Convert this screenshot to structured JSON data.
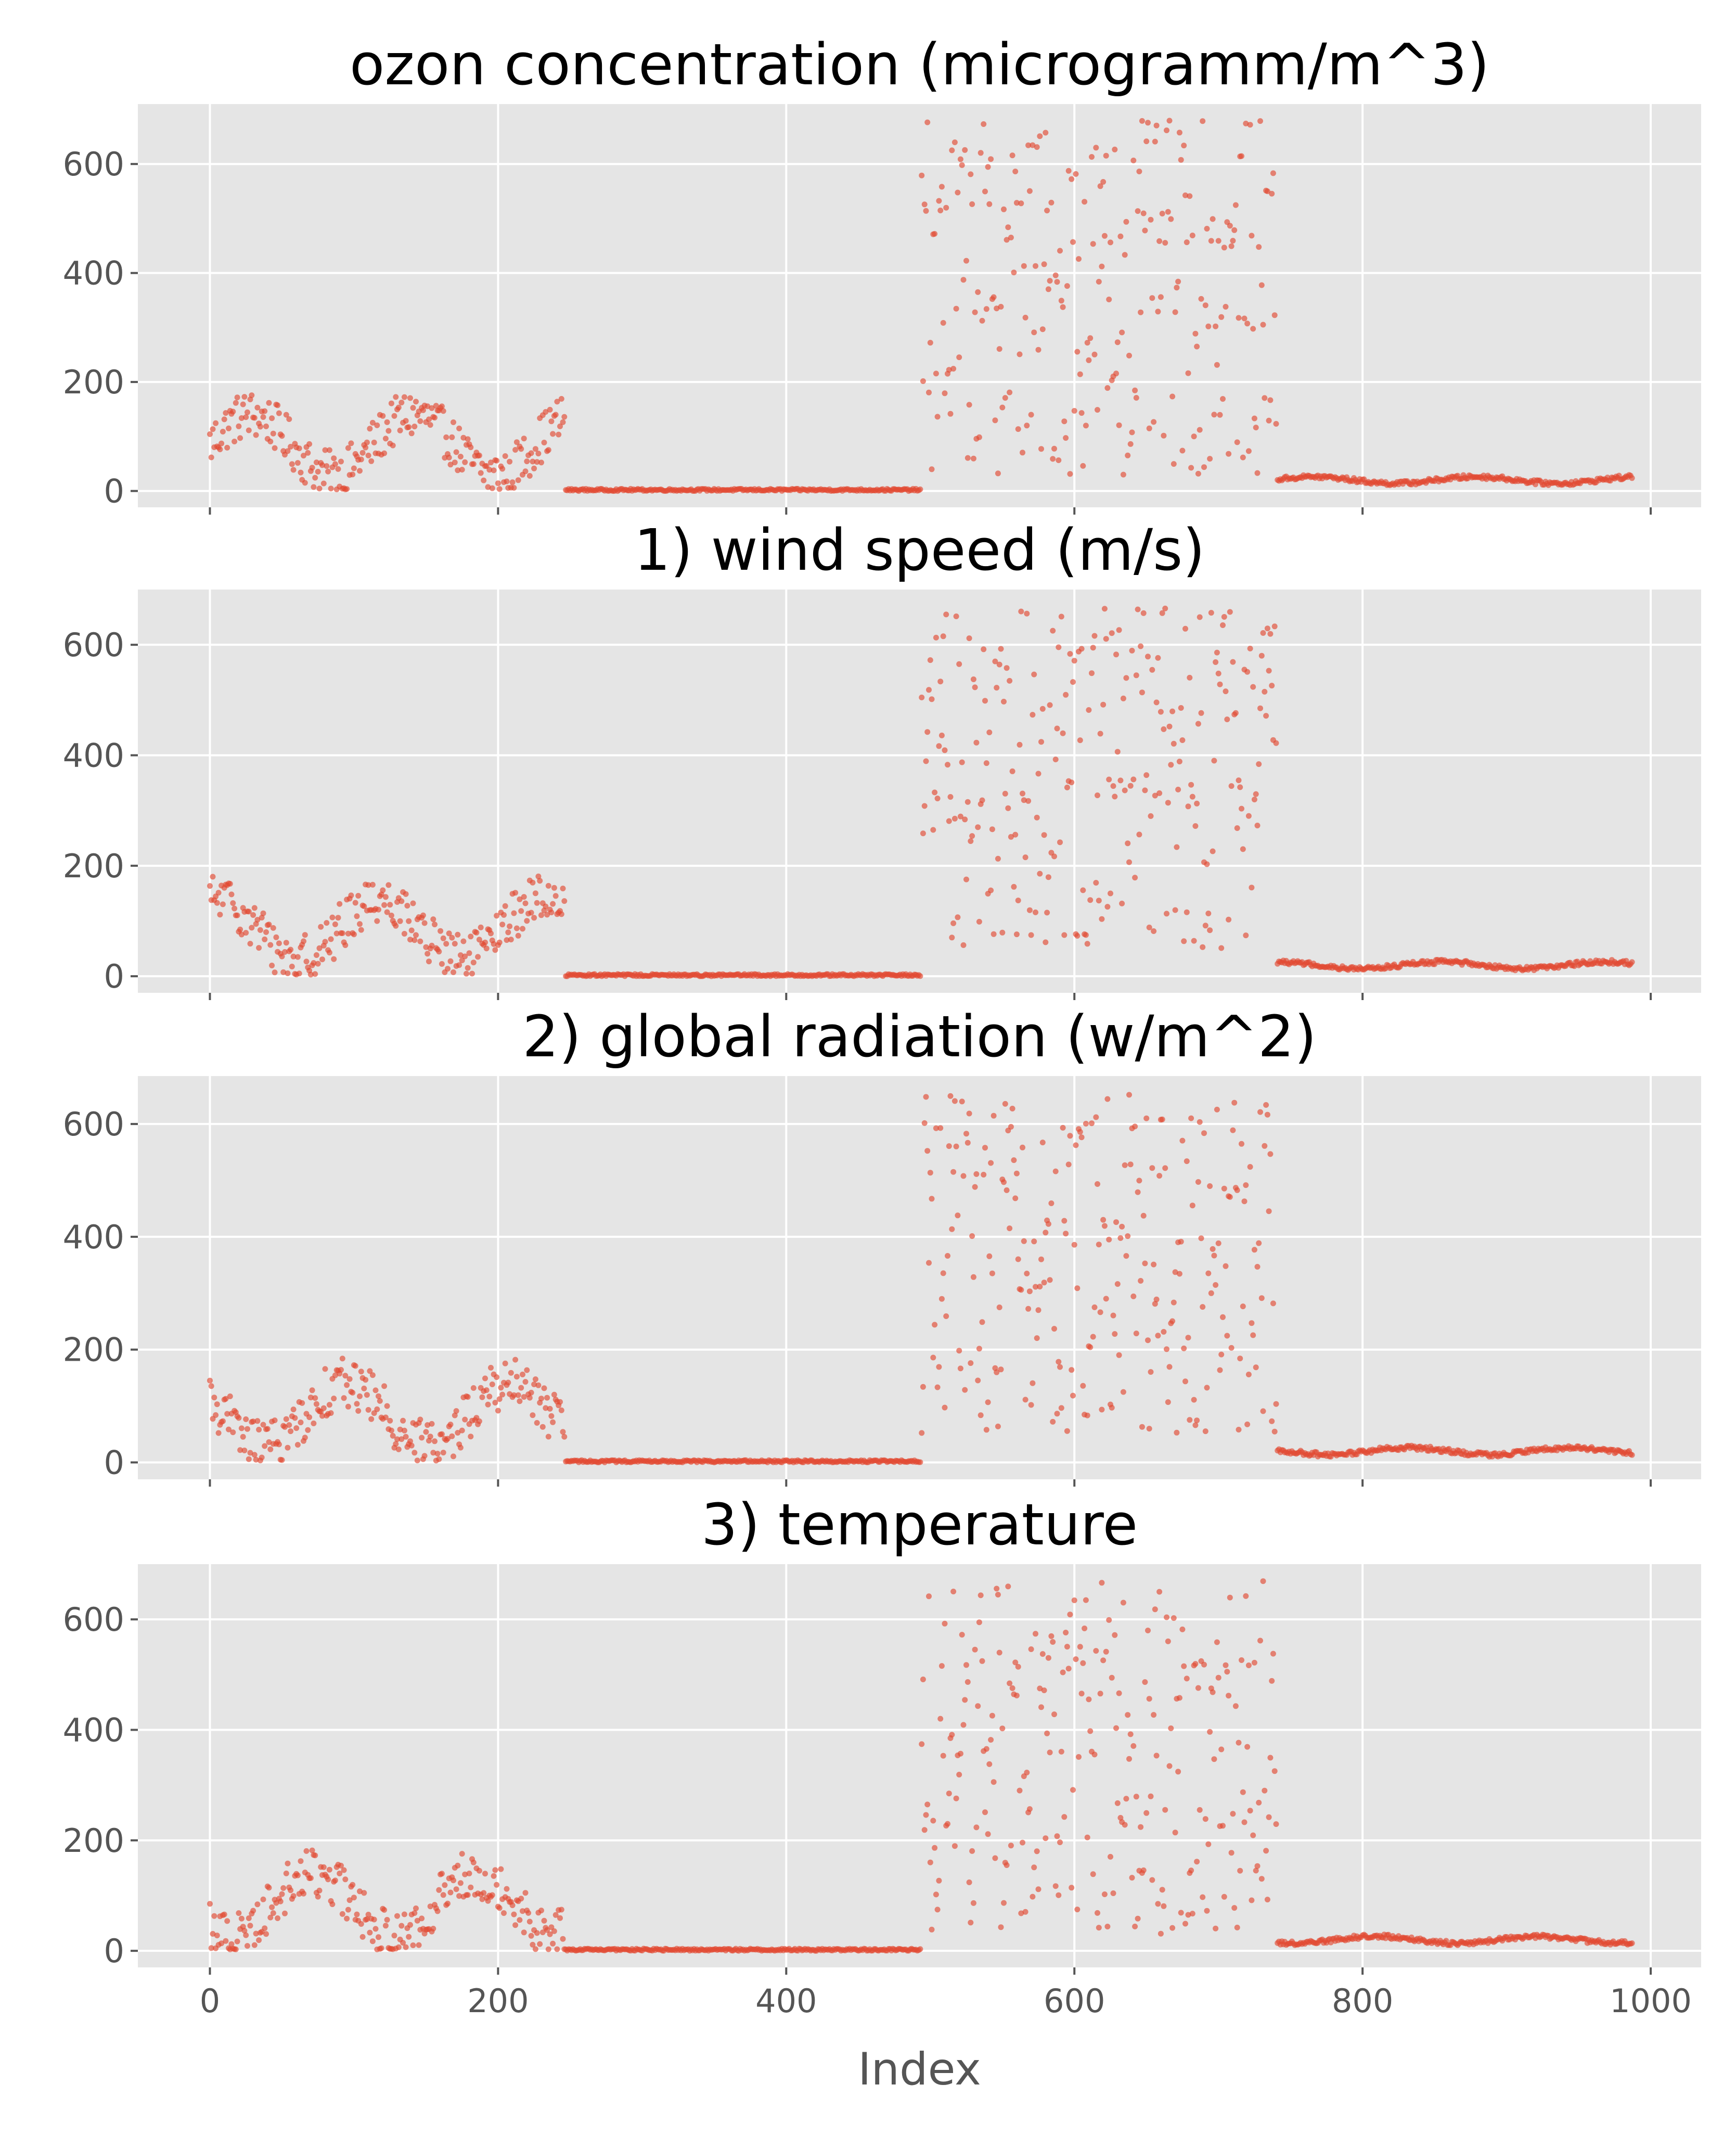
{
  "style": {
    "panel_background": "#e5e5e5",
    "grid_color": "#ffffff",
    "point_color": "#e24a33",
    "text_color": "#555555",
    "title_color": "#000000"
  },
  "chart_data": [
    {
      "type": "scatter",
      "title": "ozon concentration (microgramm/m^3)",
      "xlim": [
        -50,
        1035
      ],
      "ylim": [
        -30,
        710
      ],
      "xticks": [
        0,
        200,
        400,
        600,
        800,
        1000
      ],
      "yticks": [
        0,
        200,
        400,
        600
      ],
      "show_xticklabels": false,
      "xlabel": "",
      "grid": true,
      "segments": [
        {
          "x_range": [
            0,
            247
          ],
          "y_range": [
            2,
            210
          ],
          "mode": "wave",
          "mean": 85,
          "amp": 55,
          "noise": 45
        },
        {
          "x_range": [
            247,
            494
          ],
          "y_range": [
            0,
            6
          ],
          "mode": "flat",
          "mean": 2,
          "amp": 0,
          "noise": 2
        },
        {
          "x_range": [
            494,
            741
          ],
          "y_range": [
            30,
            680
          ],
          "mode": "uniform",
          "mean": 0,
          "amp": 0,
          "noise": 0
        },
        {
          "x_range": [
            741,
            988
          ],
          "y_range": [
            8,
            38
          ],
          "mode": "wave",
          "mean": 20,
          "amp": 6,
          "noise": 4
        }
      ]
    },
    {
      "type": "scatter",
      "title": "1) wind speed (m/s)",
      "xlim": [
        -50,
        1035
      ],
      "ylim": [
        -30,
        700
      ],
      "xticks": [
        0,
        200,
        400,
        600,
        800,
        1000
      ],
      "yticks": [
        0,
        200,
        400,
        600
      ],
      "show_xticklabels": false,
      "xlabel": "",
      "grid": true,
      "segments": [
        {
          "x_range": [
            0,
            247
          ],
          "y_range": [
            2,
            240
          ],
          "mode": "wave",
          "mean": 85,
          "amp": 55,
          "noise": 45
        },
        {
          "x_range": [
            247,
            494
          ],
          "y_range": [
            0,
            6
          ],
          "mode": "flat",
          "mean": 2,
          "amp": 0,
          "noise": 2
        },
        {
          "x_range": [
            494,
            741
          ],
          "y_range": [
            50,
            670
          ],
          "mode": "uniform",
          "mean": 0,
          "amp": 0,
          "noise": 0
        },
        {
          "x_range": [
            741,
            988
          ],
          "y_range": [
            8,
            38
          ],
          "mode": "wave",
          "mean": 20,
          "amp": 6,
          "noise": 4
        }
      ]
    },
    {
      "type": "scatter",
      "title": "2) global radiation (w/m^2)",
      "xlim": [
        -50,
        1035
      ],
      "ylim": [
        -30,
        685
      ],
      "xticks": [
        0,
        200,
        400,
        600,
        800,
        1000
      ],
      "yticks": [
        0,
        200,
        400,
        600
      ],
      "show_xticklabels": false,
      "xlabel": "",
      "grid": true,
      "segments": [
        {
          "x_range": [
            0,
            247
          ],
          "y_range": [
            2,
            240
          ],
          "mode": "wave",
          "mean": 85,
          "amp": 55,
          "noise": 45
        },
        {
          "x_range": [
            247,
            494
          ],
          "y_range": [
            0,
            6
          ],
          "mode": "flat",
          "mean": 2,
          "amp": 0,
          "noise": 2
        },
        {
          "x_range": [
            494,
            741
          ],
          "y_range": [
            50,
            655
          ],
          "mode": "uniform",
          "mean": 0,
          "amp": 0,
          "noise": 0
        },
        {
          "x_range": [
            741,
            988
          ],
          "y_range": [
            8,
            38
          ],
          "mode": "wave",
          "mean": 20,
          "amp": 6,
          "noise": 4
        }
      ]
    },
    {
      "type": "scatter",
      "title": "3) temperature",
      "xlim": [
        -50,
        1035
      ],
      "ylim": [
        -30,
        700
      ],
      "xticks": [
        0,
        200,
        400,
        600,
        800,
        1000
      ],
      "yticks": [
        0,
        200,
        400,
        600
      ],
      "show_xticklabels": true,
      "xlabel": "Index",
      "grid": true,
      "segments": [
        {
          "x_range": [
            0,
            247
          ],
          "y_range": [
            2,
            285
          ],
          "mode": "wave",
          "mean": 85,
          "amp": 55,
          "noise": 45
        },
        {
          "x_range": [
            247,
            494
          ],
          "y_range": [
            0,
            6
          ],
          "mode": "flat",
          "mean": 2,
          "amp": 0,
          "noise": 2
        },
        {
          "x_range": [
            494,
            741
          ],
          "y_range": [
            30,
            670
          ],
          "mode": "uniform",
          "mean": 0,
          "amp": 0,
          "noise": 0
        },
        {
          "x_range": [
            741,
            988
          ],
          "y_range": [
            8,
            38
          ],
          "mode": "wave",
          "mean": 20,
          "amp": 6,
          "noise": 4
        }
      ]
    }
  ]
}
